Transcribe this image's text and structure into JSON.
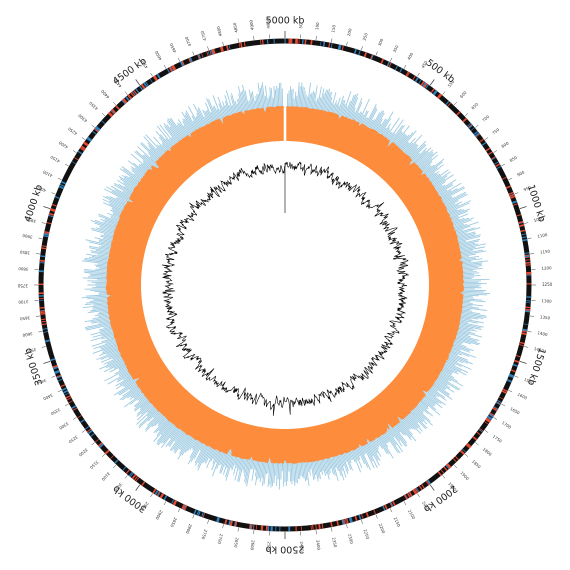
{
  "genome_map": {
    "major_tick_labels": [
      {
        "kb": 0,
        "text": "5000 kb"
      },
      {
        "kb": 500,
        "text": "500 kb"
      },
      {
        "kb": 1000,
        "text": "1000 kb"
      },
      {
        "kb": 1500,
        "text": "1500 kb"
      },
      {
        "kb": 2000,
        "text": "2000 kb"
      },
      {
        "kb": 2500,
        "text": "2500 kb"
      },
      {
        "kb": 3000,
        "text": "3000 kb"
      },
      {
        "kb": 3500,
        "text": "3500 kb"
      },
      {
        "kb": 4000,
        "text": "4000 kb"
      },
      {
        "kb": 4500,
        "text": "4500 kb"
      }
    ],
    "total_kb": 5000,
    "minor_tick_step_kb": 50,
    "colors": {
      "backbone": "#111111",
      "feature_red": "#e34a33",
      "feature_blue": "#3182bd",
      "blast_hits": "#9ecae1",
      "coverage": "#fd8d3c",
      "gc_content": "#000000"
    }
  }
}
